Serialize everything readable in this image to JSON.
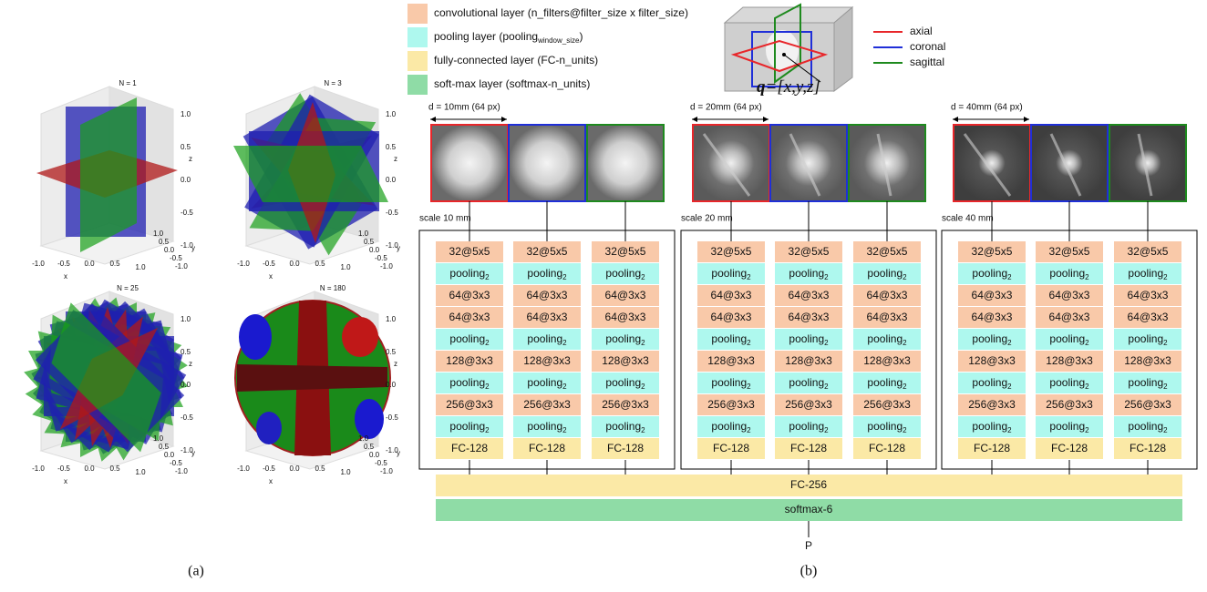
{
  "panel_a": {
    "label": "(a)",
    "plots": [
      {
        "title": "N = 1"
      },
      {
        "title": "N = 3"
      },
      {
        "title": "N = 25"
      },
      {
        "title": "N = 180"
      }
    ],
    "ticks": [
      "-1.0",
      "-0.5",
      "0.0",
      "0.5",
      "1.0"
    ],
    "axes": [
      "x",
      "y",
      "z"
    ]
  },
  "panel_b": {
    "label": "(b)",
    "legend": [
      {
        "text": "convolutional layer (n_filters@filter_size x filter_size)",
        "color": "#f9c9a9"
      },
      {
        "text": "pooling layer (pooling",
        "sub": "window_size",
        "after": ")",
        "color": "#aef8ee"
      },
      {
        "text": "fully-connected layer (FC-n_units)",
        "color": "#fbe9a6"
      },
      {
        "text": "soft-max layer (softmax-n_units)",
        "color": "#8fdca6"
      }
    ],
    "planes": [
      {
        "name": "axial",
        "color": "#e8262a"
      },
      {
        "name": "coronal",
        "color": "#1f2fd8"
      },
      {
        "name": "sagittal",
        "color": "#1e8a1e"
      }
    ],
    "query": {
      "symbol": "q",
      "rest": "=[x,y,z]"
    },
    "scales": [
      {
        "size": "d = 10mm (64 px)",
        "label": "scale 10 mm"
      },
      {
        "size": "d = 20mm (64 px)",
        "label": "scale 20 mm"
      },
      {
        "size": "d = 40mm (64 px)",
        "label": "scale 40 mm"
      }
    ],
    "layers": [
      {
        "text": "32@5x5",
        "color": "#f9c9a9"
      },
      {
        "text": "pooling",
        "sub": "2",
        "color": "#aef8ee"
      },
      {
        "text": "64@3x3",
        "color": "#f9c9a9"
      },
      {
        "text": "64@3x3",
        "color": "#f9c9a9"
      },
      {
        "text": "pooling",
        "sub": "2",
        "color": "#aef8ee"
      },
      {
        "text": "128@3x3",
        "color": "#f9c9a9"
      },
      {
        "text": "pooling",
        "sub": "2",
        "color": "#aef8ee"
      },
      {
        "text": "256@3x3",
        "color": "#f9c9a9"
      },
      {
        "text": "pooling",
        "sub": "2",
        "color": "#aef8ee"
      },
      {
        "text": "FC-128",
        "color": "#fbe9a6"
      }
    ],
    "fc": {
      "text": "FC-256",
      "color": "#fbe9a6"
    },
    "softmax": {
      "text": "softmax-6",
      "color": "#8fdca6"
    },
    "output": "P"
  }
}
